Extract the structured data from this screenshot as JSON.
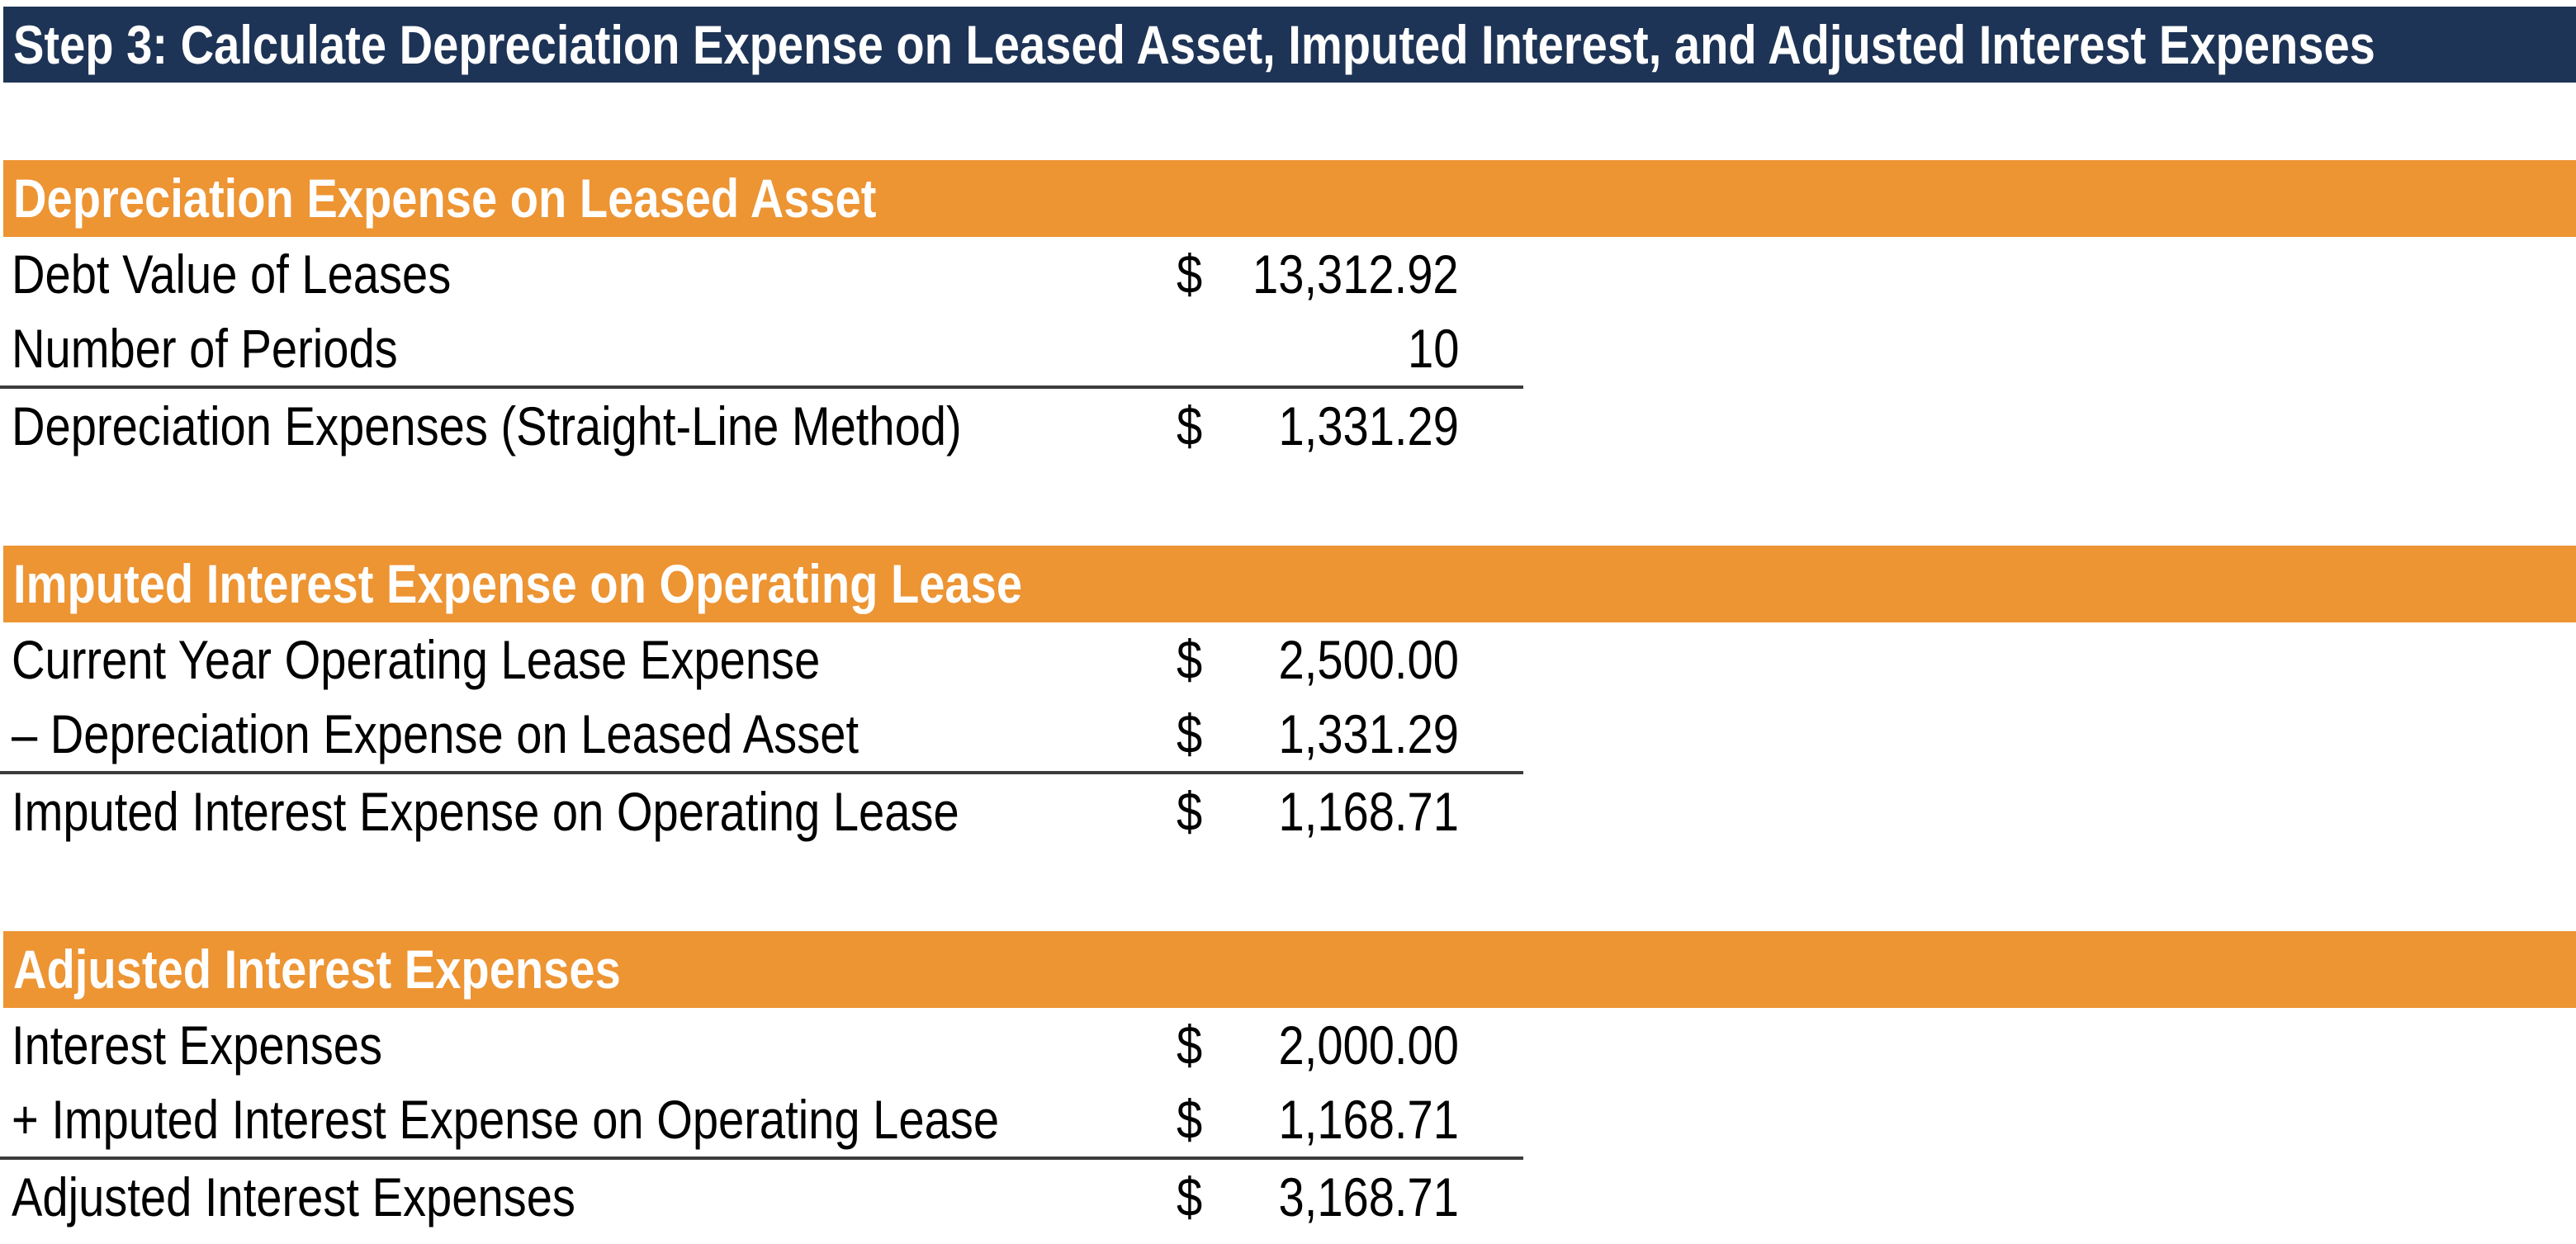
{
  "title": "Step 3: Calculate Depreciation Expense on Leased Asset, Imputed Interest, and Adjusted Interest Expenses",
  "colors": {
    "title_bar_bg": "#1E3456",
    "title_bar_text": "#FFFFFF",
    "section_header_bg": "#ED9433",
    "section_header_text": "#FFFFFF",
    "body_text": "#000000",
    "total_rule": "#3C3C3C"
  },
  "sections": [
    {
      "header": "Depreciation Expense on Leased Asset",
      "rows": [
        {
          "label": "Debt Value of Leases",
          "currency": "$",
          "value": "13,312.92",
          "total": false
        },
        {
          "label": "Number of Periods",
          "currency": "",
          "value": "10",
          "total": false
        },
        {
          "label": "Depreciation Expenses (Straight-Line Method)",
          "currency": "$",
          "value": "1,331.29",
          "total": true
        }
      ]
    },
    {
      "header": "Imputed Interest Expense on Operating Lease",
      "rows": [
        {
          "label": "Current Year Operating Lease Expense",
          "currency": "$",
          "value": "2,500.00",
          "total": false
        },
        {
          "label": "– Depreciation Expense on Leased Asset",
          "currency": "$",
          "value": "1,331.29",
          "total": false
        },
        {
          "label": "Imputed Interest Expense on Operating Lease",
          "currency": "$",
          "value": "1,168.71",
          "total": true
        }
      ]
    },
    {
      "header": "Adjusted Interest Expenses",
      "rows": [
        {
          "label": "Interest Expenses",
          "currency": "$",
          "value": "2,000.00",
          "total": false
        },
        {
          "label": "+ Imputed Interest Expense on Operating Lease",
          "currency": "$",
          "value": "1,168.71",
          "total": false
        },
        {
          "label": "Adjusted Interest Expenses",
          "currency": "$",
          "value": "3,168.71",
          "total": true
        }
      ]
    }
  ]
}
